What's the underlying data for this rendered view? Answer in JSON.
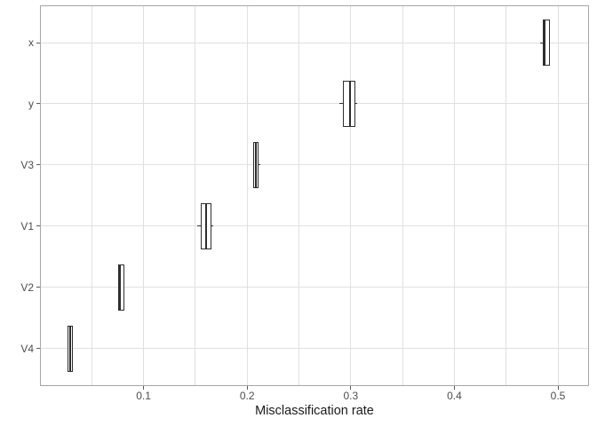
{
  "chart_data": {
    "type": "boxplot",
    "orientation": "horizontal",
    "title": "",
    "xlabel": "Misclassification rate",
    "ylabel": "",
    "xlim": [
      0,
      0.53
    ],
    "grid": true,
    "legend": "none",
    "x_tick_values": [
      0.1,
      0.2,
      0.3,
      0.4,
      0.5
    ],
    "x_tick_labels": [
      "0.1",
      "0.2",
      "0.3",
      "0.4",
      "0.5"
    ],
    "x_gridlines": [
      0.05,
      0.1,
      0.15,
      0.2,
      0.25,
      0.3,
      0.35,
      0.4,
      0.45,
      0.5
    ],
    "categories": [
      "x",
      "y",
      "V3",
      "V1",
      "V2",
      "V4"
    ],
    "boxes": [
      {
        "category": "x",
        "whisker_low": 0.483,
        "q1": 0.4865,
        "median": 0.4875,
        "q3": 0.4915,
        "whisker_high": 0.4915
      },
      {
        "category": "y",
        "whisker_low": 0.289,
        "q1": 0.2935,
        "median": 0.299,
        "q3": 0.3035,
        "whisker_high": 0.3065
      },
      {
        "category": "V3",
        "whisker_low": 0.207,
        "q1": 0.207,
        "median": 0.2085,
        "q3": 0.2105,
        "whisker_high": 0.2125
      },
      {
        "category": "V1",
        "whisker_low": 0.1515,
        "q1": 0.1565,
        "median": 0.1605,
        "q3": 0.165,
        "whisker_high": 0.167
      },
      {
        "category": "V2",
        "whisker_low": 0.076,
        "q1": 0.076,
        "median": 0.0775,
        "q3": 0.0805,
        "whisker_high": 0.0805
      },
      {
        "category": "V4",
        "whisker_low": 0.0265,
        "q1": 0.0272,
        "median": 0.029,
        "q3": 0.0306,
        "whisker_high": 0.0306
      }
    ],
    "colors": {
      "box_border": "#2e2e2e",
      "box_fill": "#ffffff",
      "gridline": "#e0e0e0",
      "panel_border": "#a6a6a6",
      "tick": "#595959",
      "tick_label": "#4d4d4d",
      "axis_title": "#1a1a1a",
      "background": "#ffffff"
    }
  }
}
